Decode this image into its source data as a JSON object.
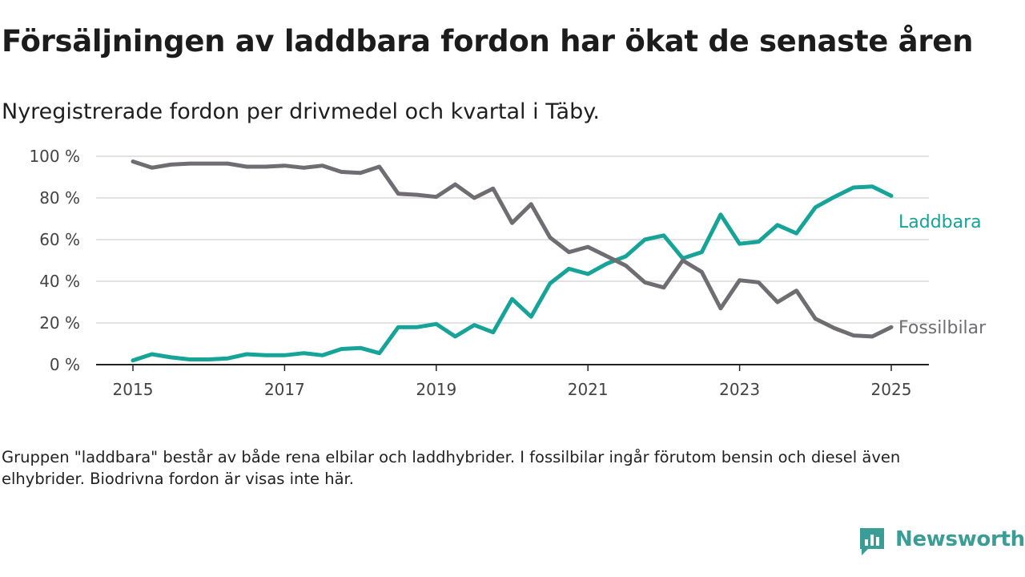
{
  "title": "Försäljningen av laddbara fordon har ökat de senaste åren",
  "subtitle": "Nyregistrerade fordon per drivmedel och kvartal i Täby.",
  "note": "Gruppen \"laddbara\" består av både rena elbilar och laddhybrider. I fossilbilar ingår förutom bensin och diesel även elhybrider. Biodrivna fordon är visas inte här.",
  "brand": {
    "name": "Newsworthy",
    "color": "#3a9e96"
  },
  "chart_data": {
    "type": "line",
    "x_unit": "år",
    "xlim": [
      2014.5,
      2025.5
    ],
    "ylim": [
      0,
      100
    ],
    "x_ticks": [
      2015,
      2017,
      2019,
      2021,
      2023,
      2025
    ],
    "y_ticks": [
      0,
      20,
      40,
      60,
      80,
      100
    ],
    "y_tick_labels": [
      "0 %",
      "20 %",
      "40 %",
      "60 %",
      "80 %",
      "100 %"
    ],
    "grid": "horizontal",
    "x": [
      2015.0,
      2015.25,
      2015.5,
      2015.75,
      2016.0,
      2016.25,
      2016.5,
      2016.75,
      2017.0,
      2017.25,
      2017.5,
      2017.75,
      2018.0,
      2018.25,
      2018.5,
      2018.75,
      2019.0,
      2019.25,
      2019.5,
      2019.75,
      2020.0,
      2020.25,
      2020.5,
      2020.75,
      2021.0,
      2021.25,
      2021.5,
      2021.75,
      2022.0,
      2022.25,
      2022.5,
      2022.75,
      2023.0,
      2023.25,
      2023.5,
      2023.75,
      2024.0,
      2024.25,
      2024.5,
      2024.75,
      2025.0
    ],
    "series": [
      {
        "name": "Laddbara",
        "color": "#16a398",
        "values": [
          2,
          5,
          3.5,
          2.5,
          2.5,
          3,
          5,
          4.5,
          4.5,
          5.5,
          4.5,
          7.5,
          8,
          5.5,
          18,
          18,
          19.5,
          13.5,
          19,
          15.5,
          31.5,
          23,
          39,
          46,
          43.5,
          48.5,
          52,
          60,
          62,
          51,
          54,
          72,
          58,
          59,
          67,
          63,
          75.5,
          80.5,
          85,
          85.5,
          81
        ]
      },
      {
        "name": "Fossilbilar",
        "color": "#6f6d72",
        "values": [
          97.5,
          94.5,
          96,
          96.5,
          96.5,
          96.5,
          95,
          95,
          95.5,
          94.5,
          95.5,
          92.5,
          92,
          95,
          82,
          81.5,
          80.5,
          86.5,
          80,
          84.5,
          68,
          77,
          61,
          54,
          56.5,
          52,
          47.5,
          39.5,
          37,
          50,
          44.5,
          27,
          40.5,
          39.5,
          30,
          35.5,
          22,
          17.5,
          14,
          13.5,
          18
        ]
      }
    ]
  }
}
